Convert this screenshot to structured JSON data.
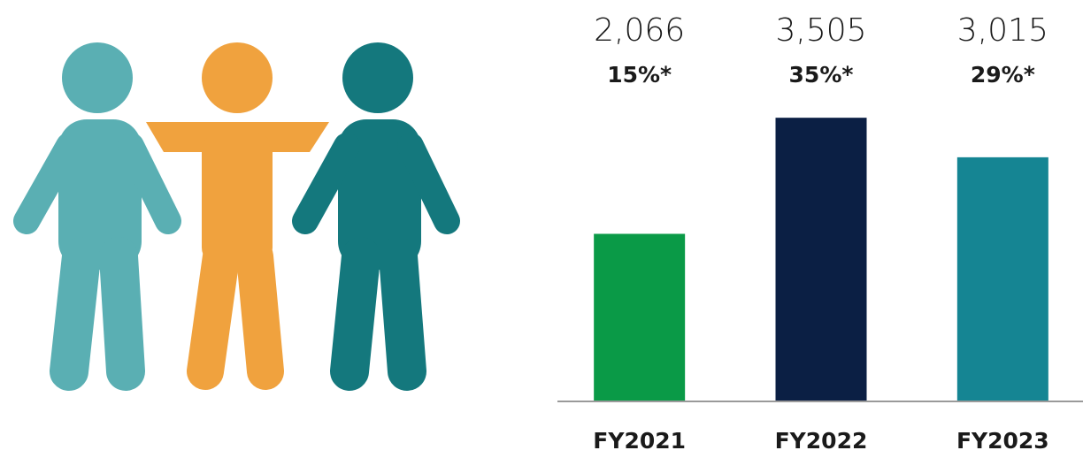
{
  "chart_data": {
    "type": "bar",
    "categories": [
      "FY2021",
      "FY2022",
      "FY2023"
    ],
    "values": [
      2066,
      3505,
      3015
    ],
    "value_labels": [
      "2,066",
      "3,505",
      "3,015"
    ],
    "annotations": [
      "15%*",
      "35%*",
      "29%*"
    ],
    "colors": [
      "#0a9a47",
      "#0b1f44",
      "#158593"
    ],
    "ylim": [
      0,
      4000
    ]
  }
}
